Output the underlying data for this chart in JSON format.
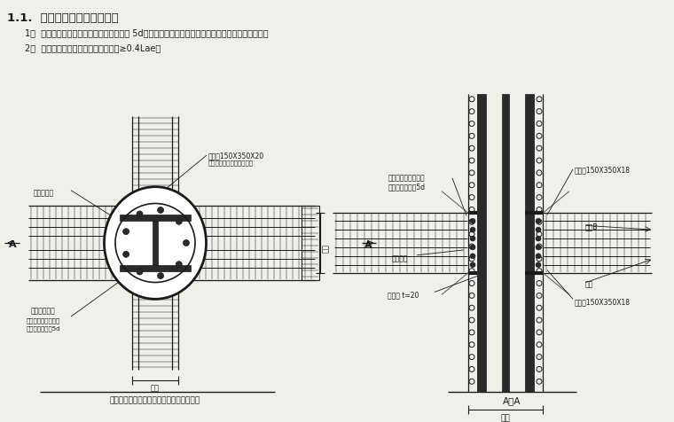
{
  "bg_color": "#f0f0eb",
  "title_text": "1.1.  梁纵筋与型钉柱连接方法",
  "item1": "1）  梁纵筋焊于钉牛腿、加劲肸上，双面焊 5d；当有双排筋时，第二排筋焊于钉牛腿或加劲肸下侧；",
  "item2": "2）  梁纵筋弯锁，满足水平段锁固长度≥0.4Lae。",
  "caption_left": "非转换层型钉圆柱与钉筋混凝土梁节点详图",
  "caption_right": "A－A",
  "line_color": "#1a1a1a",
  "text_color": "#1a1a1a",
  "anno_color": "#1a1a1a"
}
